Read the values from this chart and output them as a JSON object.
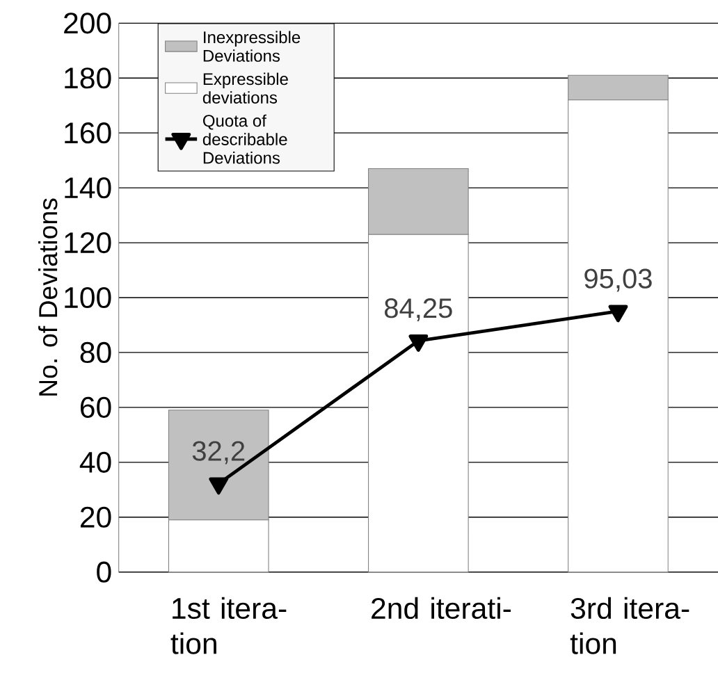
{
  "chart_data": {
    "type": "bar",
    "stacked": true,
    "ylabel": "No. of Deviations",
    "categories": [
      "1st itera- tion",
      "2nd iterati-",
      "3rd itera- tion"
    ],
    "series": [
      {
        "name": "Expressible deviations",
        "color": "#ffffff",
        "values": [
          19,
          123,
          172
        ]
      },
      {
        "name": "Inexpressible Deviations",
        "color": "#c0c0c0",
        "values": [
          40,
          24,
          9
        ]
      },
      {
        "name": "Quota of describable Deviations",
        "type": "line",
        "color": "#000000",
        "marker": "triangle",
        "values": [
          32.2,
          84.25,
          95.03
        ],
        "value_labels": [
          "32,2",
          "84,25",
          "95,03"
        ]
      }
    ],
    "ylim": [
      0,
      200
    ],
    "yticks": [
      0,
      20,
      40,
      60,
      80,
      100,
      120,
      140,
      160,
      180,
      200
    ],
    "grid": "y",
    "legend": "top left"
  }
}
